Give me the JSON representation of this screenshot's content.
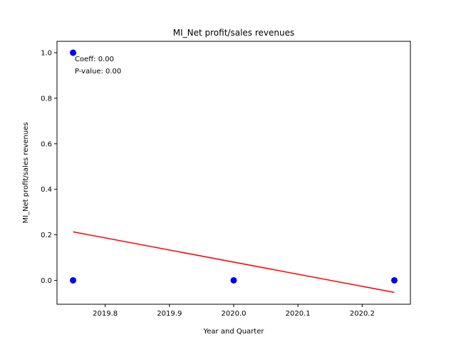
{
  "chart_data": {
    "type": "scatter",
    "title": "MI_Net profit/sales revenues",
    "xlabel": "Year and Quarter",
    "ylabel": "MI_Net profit/sales revenues",
    "xlim": [
      2019.725,
      2020.275
    ],
    "ylim": [
      -0.105,
      1.05
    ],
    "xticks": [
      2019.8,
      2019.9,
      2020.0,
      2020.1,
      2020.2
    ],
    "xtick_labels": [
      "2019.8",
      "2019.9",
      "2020.0",
      "2020.1",
      "2020.2"
    ],
    "yticks": [
      0.0,
      0.2,
      0.4,
      0.6,
      0.8,
      1.0
    ],
    "ytick_labels": [
      "0.0",
      "0.2",
      "0.4",
      "0.6",
      "0.8",
      "1.0"
    ],
    "grid": false,
    "points": {
      "color": "#0000ff",
      "x": [
        2019.75,
        2019.75,
        2020.0,
        2020.25
      ],
      "y": [
        1.0,
        0.0,
        0.0,
        0.0
      ]
    },
    "regression_line": {
      "color": "#ff0000",
      "x": [
        2019.75,
        2020.25
      ],
      "y": [
        0.213,
        -0.053
      ]
    },
    "annotations": [
      "Coeff: 0.00",
      "P-value: 0.00"
    ]
  }
}
